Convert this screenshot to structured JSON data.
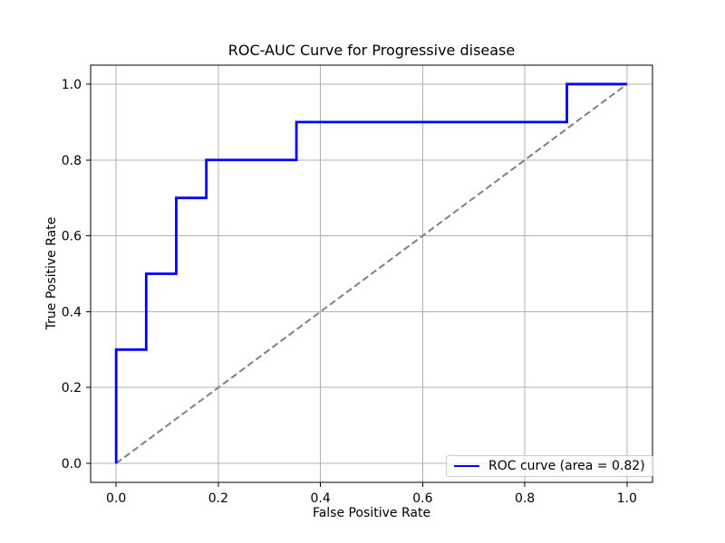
{
  "figure": {
    "background": "#ffffff"
  },
  "chart_data": {
    "type": "line",
    "title": "ROC-AUC Curve for Progressive disease",
    "xlabel": "False Positive Rate",
    "ylabel": "True Positive Rate",
    "xlim": [
      -0.05,
      1.05
    ],
    "ylim": [
      -0.05,
      1.05
    ],
    "x_ticks": [
      "0.0",
      "0.2",
      "0.4",
      "0.6",
      "0.8",
      "1.0"
    ],
    "y_ticks": [
      "0.0",
      "0.2",
      "0.4",
      "0.6",
      "0.8",
      "1.0"
    ],
    "grid": true,
    "grid_color": "#b0b0b0",
    "spine_color": "#000000",
    "auc": 0.82,
    "legend": {
      "position": "lower right",
      "entries": [
        "ROC curve (area = 0.82)"
      ],
      "border_color": "#cccccc",
      "background": "rgba(255,255,255,0.8)"
    },
    "series": [
      {
        "id": "roc-curve",
        "name": "ROC curve (area = 0.82)",
        "color": "#0000ff",
        "style": "solid",
        "line_width": 2.8,
        "x": [
          0.0,
          0.0,
          0.0588,
          0.0588,
          0.1176,
          0.1176,
          0.1765,
          0.1765,
          0.3529,
          0.3529,
          0.8824,
          0.8824,
          1.0
        ],
        "y": [
          0.0,
          0.3,
          0.3,
          0.5,
          0.5,
          0.7,
          0.7,
          0.8,
          0.8,
          0.9,
          0.9,
          1.0,
          1.0
        ]
      },
      {
        "id": "chance-line",
        "color": "#808080",
        "style": "dashed",
        "line_width": 2,
        "x": [
          0.0,
          1.0
        ],
        "y": [
          0.0,
          1.0
        ]
      }
    ]
  }
}
